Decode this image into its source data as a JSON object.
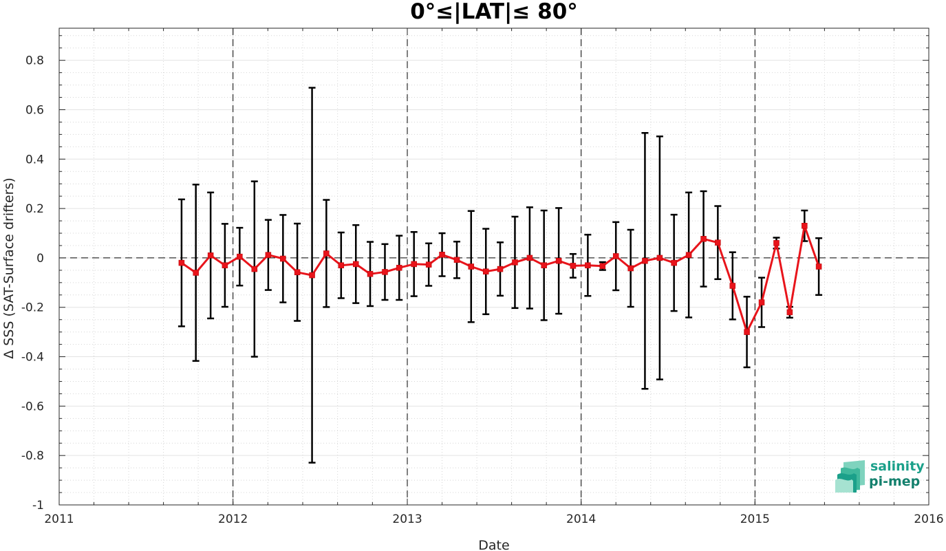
{
  "chart_data": {
    "type": "line",
    "title": "0°≤|LAT|≤ 80°",
    "xlabel": "Date",
    "ylabel": "Δ SSS (SAT-Surface drifters)",
    "xlim": [
      "2011-01-01",
      "2016-01-01"
    ],
    "ylim": [
      -1,
      0.93
    ],
    "x_ticks": [
      "2011",
      "2012",
      "2013",
      "2014",
      "2015",
      "2016"
    ],
    "y_ticks": [
      -1,
      -0.8,
      -0.6,
      -0.4,
      -0.2,
      0,
      0.2,
      0.4,
      0.6,
      0.8
    ],
    "y_tick_labels": [
      "-1",
      "-0.8",
      "-0.6",
      "-0.4",
      "-0.2",
      "0",
      "0.2",
      "0.4",
      "0.6",
      "0.8"
    ],
    "grid": true,
    "minor_grid": true,
    "year_boundaries_dashed": true,
    "zero_line_dashed": true,
    "series": [
      {
        "marker": "square",
        "line_color": "#e8141b",
        "errorbar_color": "#000000",
        "points": [
          {
            "x": "2011-09-15",
            "y": -0.02,
            "err": 0.257
          },
          {
            "x": "2011-10-15",
            "y": -0.06,
            "err": 0.357
          },
          {
            "x": "2011-11-15",
            "y": 0.01,
            "err": 0.255
          },
          {
            "x": "2011-12-15",
            "y": -0.03,
            "err": 0.168
          },
          {
            "x": "2012-01-15",
            "y": 0.005,
            "err": 0.117
          },
          {
            "x": "2012-02-15",
            "y": -0.045,
            "err": 0.355
          },
          {
            "x": "2012-03-15",
            "y": 0.012,
            "err": 0.142
          },
          {
            "x": "2012-04-15",
            "y": -0.003,
            "err": 0.177
          },
          {
            "x": "2012-05-15",
            "y": -0.058,
            "err": 0.197
          },
          {
            "x": "2012-06-15",
            "y": -0.07,
            "err": 0.759
          },
          {
            "x": "2012-07-15",
            "y": 0.018,
            "err": 0.217
          },
          {
            "x": "2012-08-15",
            "y": -0.03,
            "err": 0.133
          },
          {
            "x": "2012-09-15",
            "y": -0.025,
            "err": 0.158
          },
          {
            "x": "2012-10-15",
            "y": -0.065,
            "err": 0.13
          },
          {
            "x": "2012-11-15",
            "y": -0.057,
            "err": 0.113
          },
          {
            "x": "2012-12-15",
            "y": -0.04,
            "err": 0.13
          },
          {
            "x": "2013-01-15",
            "y": -0.025,
            "err": 0.13
          },
          {
            "x": "2013-02-15",
            "y": -0.027,
            "err": 0.086
          },
          {
            "x": "2013-03-15",
            "y": 0.013,
            "err": 0.087
          },
          {
            "x": "2013-04-15",
            "y": -0.008,
            "err": 0.074
          },
          {
            "x": "2013-05-15",
            "y": -0.035,
            "err": 0.225
          },
          {
            "x": "2013-06-15",
            "y": -0.055,
            "err": 0.173
          },
          {
            "x": "2013-07-15",
            "y": -0.045,
            "err": 0.108
          },
          {
            "x": "2013-08-15",
            "y": -0.018,
            "err": 0.185
          },
          {
            "x": "2013-09-15",
            "y": 0.0,
            "err": 0.205
          },
          {
            "x": "2013-10-15",
            "y": -0.03,
            "err": 0.222
          },
          {
            "x": "2013-11-15",
            "y": -0.012,
            "err": 0.214
          },
          {
            "x": "2013-12-15",
            "y": -0.032,
            "err": 0.048
          },
          {
            "x": "2014-01-15",
            "y": -0.03,
            "err": 0.124
          },
          {
            "x": "2014-02-15",
            "y": -0.033,
            "err": 0.016
          },
          {
            "x": "2014-03-15",
            "y": 0.007,
            "err": 0.138
          },
          {
            "x": "2014-04-15",
            "y": -0.042,
            "err": 0.156
          },
          {
            "x": "2014-05-15",
            "y": -0.012,
            "err": 0.518
          },
          {
            "x": "2014-06-15",
            "y": 0.0,
            "err": 0.492
          },
          {
            "x": "2014-07-15",
            "y": -0.02,
            "err": 0.195
          },
          {
            "x": "2014-08-15",
            "y": 0.012,
            "err": 0.253
          },
          {
            "x": "2014-09-15",
            "y": 0.077,
            "err": 0.193
          },
          {
            "x": "2014-10-15",
            "y": 0.062,
            "err": 0.148
          },
          {
            "x": "2014-11-15",
            "y": -0.113,
            "err": 0.136
          },
          {
            "x": "2014-12-15",
            "y": -0.3,
            "err": 0.143
          },
          {
            "x": "2015-01-15",
            "y": -0.18,
            "err": 0.1
          },
          {
            "x": "2015-02-15",
            "y": 0.06,
            "err": 0.022
          },
          {
            "x": "2015-03-15",
            "y": -0.22,
            "err": 0.022
          },
          {
            "x": "2015-04-15",
            "y": 0.13,
            "err": 0.062
          },
          {
            "x": "2015-05-15",
            "y": -0.035,
            "err": 0.115
          }
        ]
      }
    ]
  },
  "logo": {
    "line1": "salinity",
    "line2": "pi-mep",
    "color": "#1ba08a"
  }
}
